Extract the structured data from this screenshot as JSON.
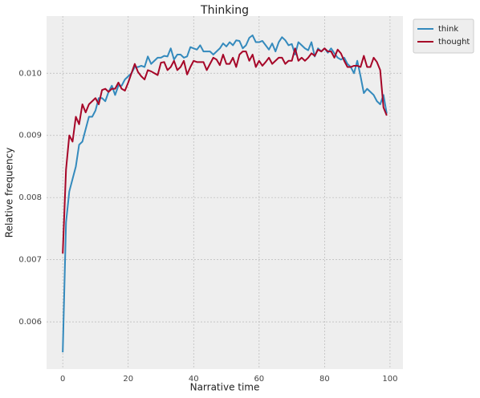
{
  "chart_data": {
    "type": "line",
    "title": "Thinking",
    "xlabel": "Narrative time",
    "ylabel": "Relative frequency",
    "x": [
      0,
      1,
      2,
      3,
      4,
      5,
      6,
      7,
      8,
      9,
      10,
      11,
      12,
      13,
      14,
      15,
      16,
      17,
      18,
      19,
      20,
      21,
      22,
      23,
      24,
      25,
      26,
      27,
      28,
      29,
      30,
      31,
      32,
      33,
      34,
      35,
      36,
      37,
      38,
      39,
      40,
      41,
      42,
      43,
      44,
      45,
      46,
      47,
      48,
      49,
      50,
      51,
      52,
      53,
      54,
      55,
      56,
      57,
      58,
      59,
      60,
      61,
      62,
      63,
      64,
      65,
      66,
      67,
      68,
      69,
      70,
      71,
      72,
      73,
      74,
      75,
      76,
      77,
      78,
      79,
      80,
      81,
      82,
      83,
      84,
      85,
      86,
      87,
      88,
      89,
      90,
      91,
      92,
      93,
      94,
      95,
      96,
      97,
      98,
      99
    ],
    "series": [
      {
        "name": "think",
        "color": "#348ABD",
        "values": [
          0.00551,
          0.0076,
          0.0081,
          0.0083,
          0.0085,
          0.00885,
          0.0089,
          0.0091,
          0.0093,
          0.0093,
          0.0094,
          0.0096,
          0.0096,
          0.00955,
          0.0097,
          0.0098,
          0.00965,
          0.0098,
          0.0098,
          0.0099,
          0.00995,
          0.01,
          0.0101,
          0.0101,
          0.01012,
          0.0101,
          0.01027,
          0.01015,
          0.0102,
          0.01025,
          0.01025,
          0.01028,
          0.01027,
          0.0104,
          0.01022,
          0.0103,
          0.0103,
          0.01025,
          0.01027,
          0.01042,
          0.0104,
          0.01038,
          0.01045,
          0.01035,
          0.01035,
          0.01035,
          0.0103,
          0.01035,
          0.0104,
          0.01048,
          0.01043,
          0.0105,
          0.01045,
          0.01053,
          0.01052,
          0.0104,
          0.01045,
          0.01057,
          0.01061,
          0.0105,
          0.0105,
          0.01052,
          0.01045,
          0.01038,
          0.01048,
          0.01035,
          0.0105,
          0.01058,
          0.01053,
          0.01045,
          0.01047,
          0.0103,
          0.0105,
          0.01045,
          0.0104,
          0.01037,
          0.0105,
          0.01027,
          0.0104,
          0.01035,
          0.0104,
          0.01033,
          0.0104,
          0.01032,
          0.01025,
          0.01022,
          0.01025,
          0.01015,
          0.0101,
          0.01,
          0.0102,
          0.00995,
          0.00968,
          0.00975,
          0.0097,
          0.00965,
          0.00955,
          0.0095,
          0.00965,
          0.00935
        ]
      },
      {
        "name": "thought",
        "color": "#A60628",
        "values": [
          0.0071,
          0.00845,
          0.009,
          0.0089,
          0.0093,
          0.00918,
          0.0095,
          0.00937,
          0.0095,
          0.00955,
          0.0096,
          0.0095,
          0.00973,
          0.00975,
          0.0097,
          0.00975,
          0.00975,
          0.00985,
          0.00975,
          0.00972,
          0.00985,
          0.01,
          0.01015,
          0.01002,
          0.00995,
          0.0099,
          0.01005,
          0.01003,
          0.01,
          0.00997,
          0.01017,
          0.01018,
          0.01005,
          0.0101,
          0.0102,
          0.01005,
          0.0101,
          0.0102,
          0.00998,
          0.0101,
          0.0102,
          0.01018,
          0.01018,
          0.01018,
          0.01005,
          0.01015,
          0.01025,
          0.01022,
          0.01013,
          0.0103,
          0.01015,
          0.01015,
          0.01025,
          0.0101,
          0.0103,
          0.01035,
          0.01035,
          0.0102,
          0.0103,
          0.0101,
          0.0102,
          0.01012,
          0.01018,
          0.01025,
          0.01015,
          0.0102,
          0.01025,
          0.01025,
          0.01015,
          0.0102,
          0.0102,
          0.0104,
          0.0102,
          0.01025,
          0.0102,
          0.01025,
          0.01032,
          0.01028,
          0.01038,
          0.01035,
          0.0104,
          0.01035,
          0.01035,
          0.01025,
          0.01038,
          0.01032,
          0.0102,
          0.0101,
          0.0101,
          0.01012,
          0.01012,
          0.0101,
          0.01028,
          0.0101,
          0.0101,
          0.01025,
          0.01018,
          0.01005,
          0.00945,
          0.00932
        ]
      }
    ],
    "xlim": [
      -4.95,
      103.95
    ],
    "ylim": [
      0.00524,
      0.01092
    ],
    "xticks": [
      0,
      20,
      40,
      60,
      80,
      100
    ],
    "yticks": [
      0.006,
      0.007,
      0.008,
      0.009,
      {
        "value": 0.01,
        "label": "0.010"
      }
    ],
    "grid": true,
    "legend": "outside upper right"
  }
}
